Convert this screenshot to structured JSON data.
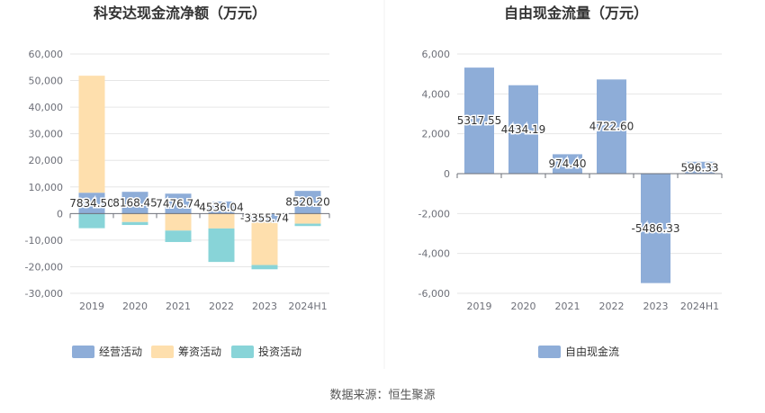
{
  "footer": {
    "source": "数据来源：恒生聚源"
  },
  "chart_data": [
    {
      "type": "bar",
      "stacked": true,
      "title": "科安达现金流净额（万元）",
      "categories": [
        "2019",
        "2020",
        "2021",
        "2022",
        "2023",
        "2024H1"
      ],
      "series": [
        {
          "name": "经营活动",
          "color": "#8eadd8",
          "values": [
            7834.5,
            8168.45,
            7476.74,
            4536.04,
            -3355.74,
            8520.2
          ]
        },
        {
          "name": "筹资活动",
          "color": "#fedfad",
          "values": [
            44000,
            -3200,
            -6400,
            -5600,
            -16000,
            -3800
          ]
        },
        {
          "name": "投资活动",
          "color": "#88d4d8",
          "values": [
            -5500,
            -1100,
            -4300,
            -12600,
            -1600,
            -900
          ]
        }
      ],
      "data_labels": [
        "7834.50",
        "8168.45",
        "7476.74",
        "4536.04",
        "-3355.74",
        "8520.20"
      ],
      "ylim": [
        -30000,
        60000
      ],
      "yticks": [
        "60,000",
        "50,000",
        "40,000",
        "30,000",
        "20,000",
        "10,000",
        "0",
        "-10,000",
        "-20,000",
        "-30,000"
      ],
      "ytick_values": [
        60000,
        50000,
        40000,
        30000,
        20000,
        10000,
        0,
        -10000,
        -20000,
        -30000
      ],
      "grid": true,
      "legend_position": "bottom"
    },
    {
      "type": "bar",
      "title": "自由现金流量（万元）",
      "categories": [
        "2019",
        "2020",
        "2021",
        "2022",
        "2023",
        "2024H1"
      ],
      "series": [
        {
          "name": "自由现金流",
          "color": "#8eadd8",
          "values": [
            5317.55,
            4434.19,
            974.4,
            4722.6,
            -5486.33,
            596.33
          ]
        }
      ],
      "data_labels": [
        "5317.55",
        "4434.19",
        "974.40",
        "4722.60",
        "-5486.33",
        "596.33"
      ],
      "ylim": [
        -6000,
        6000
      ],
      "yticks": [
        "6,000",
        "4,000",
        "2,000",
        "0",
        "-2,000",
        "-4,000",
        "-6,000"
      ],
      "ytick_values": [
        6000,
        4000,
        2000,
        0,
        -2000,
        -4000,
        -6000
      ],
      "grid": true,
      "legend_position": "bottom"
    }
  ]
}
